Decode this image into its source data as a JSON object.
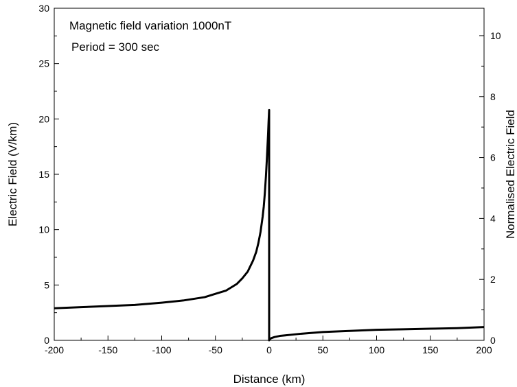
{
  "chart_data": {
    "type": "line",
    "xlabel": "Distance (km)",
    "ylabel": "Electric Field (V/km)",
    "y2label": "Normalised Electric Field",
    "annotations": [
      "Magnetic field variation 1000nT",
      "Period = 300 sec"
    ],
    "xlim": [
      -200,
      200
    ],
    "ylim": [
      0,
      30
    ],
    "y2lim": [
      0,
      10.9
    ],
    "x_ticks": [
      -200,
      -150,
      -100,
      -50,
      0,
      50,
      100,
      150,
      200
    ],
    "y_ticks": [
      0,
      5,
      10,
      15,
      20,
      25,
      30
    ],
    "y2_ticks": [
      0,
      2,
      4,
      6,
      8,
      10
    ],
    "grid": false,
    "legend": "none",
    "line_color": "#000000",
    "series": [
      {
        "x": [
          -200,
          -175,
          -150,
          -125,
          -100,
          -80,
          -60,
          -50,
          -40,
          -30,
          -25,
          -20,
          -15,
          -12,
          -10,
          -8,
          -6,
          -5,
          -4,
          -3,
          -2,
          -1,
          -0.5,
          0,
          0,
          0.5,
          2,
          5,
          10,
          15,
          20,
          30,
          50,
          75,
          100,
          125,
          150,
          175,
          200
        ],
        "y": [
          2.9,
          3.0,
          3.1,
          3.2,
          3.4,
          3.6,
          3.9,
          4.2,
          4.5,
          5.1,
          5.6,
          6.2,
          7.2,
          8.0,
          8.8,
          9.8,
          11.2,
          12.1,
          13.3,
          14.8,
          16.6,
          18.6,
          19.8,
          20.8,
          0.0,
          0.1,
          0.2,
          0.3,
          0.4,
          0.45,
          0.5,
          0.6,
          0.75,
          0.85,
          0.95,
          1.0,
          1.05,
          1.1,
          1.2
        ]
      }
    ]
  }
}
